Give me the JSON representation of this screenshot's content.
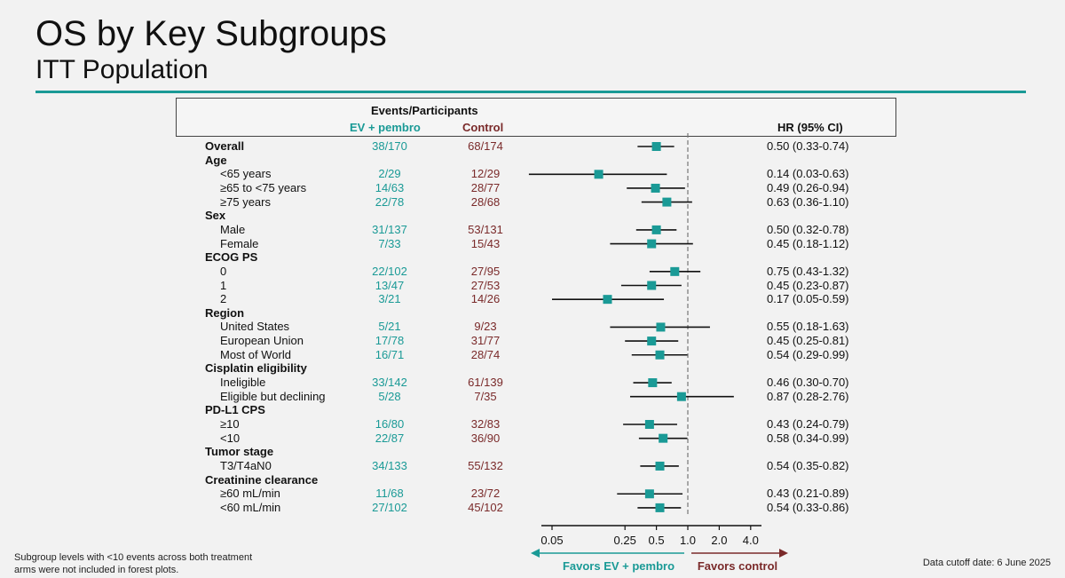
{
  "title": "OS by Key Subgroups",
  "subtitle": "ITT Population",
  "header": {
    "events_participants": "Events/Participants",
    "ev_label": "EV + pembro",
    "control_label": "Control",
    "hr_label": "HR (95% CI)"
  },
  "footnote": "Subgroup levels with <10 events across both treatment arms were not included in forest plots.",
  "cutoff": "Data cutoff date: 6 June 2025",
  "colors": {
    "accent": "#1a9a96",
    "control": "#7a2a2a"
  },
  "chart_data": {
    "type": "forest",
    "x_scale": "log",
    "xlim": [
      0.05,
      4.0
    ],
    "reference_line": 1.0,
    "xticks": [
      "0.05",
      "0.25",
      "0.5",
      "1.0",
      "2.0",
      "4.0"
    ],
    "xtick_values": [
      0.05,
      0.25,
      0.5,
      1.0,
      2.0,
      4.0
    ],
    "favors_left": "Favors EV + pembro",
    "favors_right": "Favors control",
    "rows": [
      {
        "label": "Overall",
        "kind": "cat",
        "ev": "38/170",
        "control": "68/174",
        "hr": 0.5,
        "lo": 0.33,
        "hi": 0.74,
        "hr_text": "0.50 (0.33-0.74)"
      },
      {
        "label": "Age",
        "kind": "cat"
      },
      {
        "label": "<65 years",
        "kind": "sub",
        "ev": "2/29",
        "control": "12/29",
        "hr": 0.14,
        "lo": 0.03,
        "hi": 0.63,
        "hr_text": "0.14 (0.03-0.63)"
      },
      {
        "label": "≥65 to <75 years",
        "kind": "sub",
        "ev": "14/63",
        "control": "28/77",
        "hr": 0.49,
        "lo": 0.26,
        "hi": 0.94,
        "hr_text": "0.49 (0.26-0.94)"
      },
      {
        "label": "≥75 years",
        "kind": "sub",
        "ev": "22/78",
        "control": "28/68",
        "hr": 0.63,
        "lo": 0.36,
        "hi": 1.1,
        "hr_text": "0.63 (0.36-1.10)"
      },
      {
        "label": "Sex",
        "kind": "cat"
      },
      {
        "label": "Male",
        "kind": "sub",
        "ev": "31/137",
        "control": "53/131",
        "hr": 0.5,
        "lo": 0.32,
        "hi": 0.78,
        "hr_text": "0.50 (0.32-0.78)"
      },
      {
        "label": "Female",
        "kind": "sub",
        "ev": "7/33",
        "control": "15/43",
        "hr": 0.45,
        "lo": 0.18,
        "hi": 1.12,
        "hr_text": "0.45 (0.18-1.12)"
      },
      {
        "label": "ECOG PS",
        "kind": "cat"
      },
      {
        "label": "0",
        "kind": "sub",
        "ev": "22/102",
        "control": "27/95",
        "hr": 0.75,
        "lo": 0.43,
        "hi": 1.32,
        "hr_text": "0.75 (0.43-1.32)"
      },
      {
        "label": "1",
        "kind": "sub",
        "ev": "13/47",
        "control": "27/53",
        "hr": 0.45,
        "lo": 0.23,
        "hi": 0.87,
        "hr_text": "0.45 (0.23-0.87)"
      },
      {
        "label": "2",
        "kind": "sub",
        "ev": "3/21",
        "control": "14/26",
        "hr": 0.17,
        "lo": 0.05,
        "hi": 0.59,
        "hr_text": "0.17 (0.05-0.59)"
      },
      {
        "label": "Region",
        "kind": "cat"
      },
      {
        "label": "United States",
        "kind": "sub",
        "ev": "5/21",
        "control": "9/23",
        "hr": 0.55,
        "lo": 0.18,
        "hi": 1.63,
        "hr_text": "0.55 (0.18-1.63)"
      },
      {
        "label": "European Union",
        "kind": "sub",
        "ev": "17/78",
        "control": "31/77",
        "hr": 0.45,
        "lo": 0.25,
        "hi": 0.81,
        "hr_text": "0.45 (0.25-0.81)"
      },
      {
        "label": "Most of World",
        "kind": "sub",
        "ev": "16/71",
        "control": "28/74",
        "hr": 0.54,
        "lo": 0.29,
        "hi": 0.99,
        "hr_text": "0.54 (0.29-0.99)"
      },
      {
        "label": "Cisplatin eligibility",
        "kind": "cat"
      },
      {
        "label": "Ineligible",
        "kind": "sub",
        "ev": "33/142",
        "control": "61/139",
        "hr": 0.46,
        "lo": 0.3,
        "hi": 0.7,
        "hr_text": "0.46 (0.30-0.70)"
      },
      {
        "label": "Eligible but declining",
        "kind": "sub",
        "ev": "5/28",
        "control": "7/35",
        "hr": 0.87,
        "lo": 0.28,
        "hi": 2.76,
        "hr_text": "0.87 (0.28-2.76)"
      },
      {
        "label": "PD-L1 CPS",
        "kind": "cat"
      },
      {
        "label": "≥10",
        "kind": "sub",
        "ev": "16/80",
        "control": "32/83",
        "hr": 0.43,
        "lo": 0.24,
        "hi": 0.79,
        "hr_text": "0.43 (0.24-0.79)"
      },
      {
        "label": "<10",
        "kind": "sub",
        "ev": "22/87",
        "control": "36/90",
        "hr": 0.58,
        "lo": 0.34,
        "hi": 0.99,
        "hr_text": "0.58 (0.34-0.99)"
      },
      {
        "label": "Tumor stage",
        "kind": "cat"
      },
      {
        "label": "T3/T4aN0",
        "kind": "sub",
        "ev": "34/133",
        "control": "55/132",
        "hr": 0.54,
        "lo": 0.35,
        "hi": 0.82,
        "hr_text": "0.54 (0.35-0.82)"
      },
      {
        "label": "Creatinine clearance",
        "kind": "cat"
      },
      {
        "label": "≥60 mL/min",
        "kind": "sub",
        "ev": "11/68",
        "control": "23/72",
        "hr": 0.43,
        "lo": 0.21,
        "hi": 0.89,
        "hr_text": "0.43 (0.21-0.89)"
      },
      {
        "label": "<60 mL/min",
        "kind": "sub",
        "ev": "27/102",
        "control": "45/102",
        "hr": 0.54,
        "lo": 0.33,
        "hi": 0.86,
        "hr_text": "0.54 (0.33-0.86)"
      }
    ]
  }
}
